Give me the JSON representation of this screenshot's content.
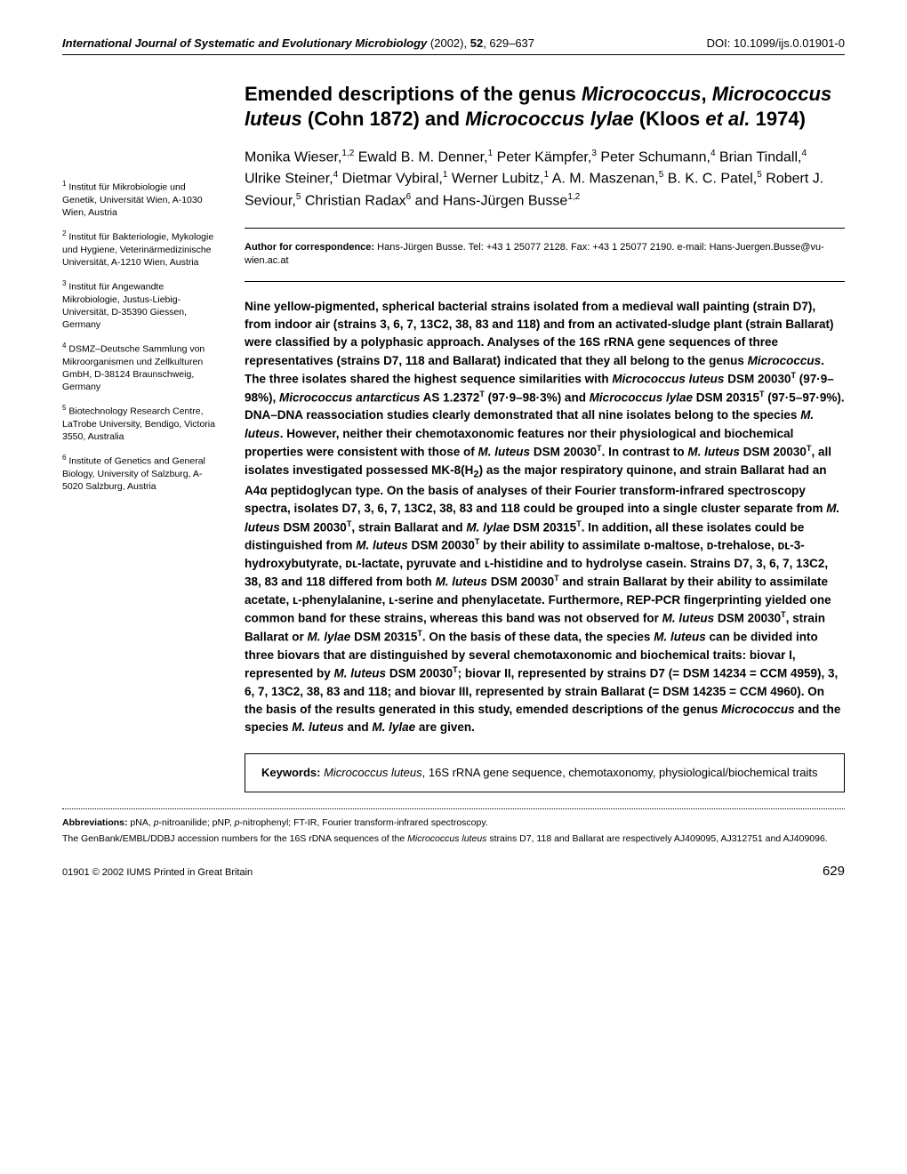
{
  "header": {
    "journal_italic": "International Journal of Systematic and Evolutionary Microbiology",
    "journal_meta": " (2002), ",
    "volume": "52",
    "pages": ", 629–637",
    "doi": "DOI: 10.1099/ijs.0.01901-0"
  },
  "title_html": "Emended descriptions of the genus <em>Micrococcus</em>, <em>Micrococcus luteus</em> (Cohn 1872) and <em>Micrococcus lylae</em> (Kloos <em>et al.</em> 1974)",
  "authors_html": "Monika Wieser,<sup>1,2</sup> Ewald B. M. Denner,<sup>1</sup> Peter Kämpfer,<sup>3</sup> Peter Schumann,<sup>4</sup> Brian Tindall,<sup>4</sup> Ulrike Steiner,<sup>4</sup> Dietmar Vybiral,<sup>1</sup> Werner Lubitz,<sup>1</sup> A. M. Maszenan,<sup>5</sup> B. K. C. Patel,<sup>5</sup> Robert J. Seviour,<sup>5</sup> Christian Radax<sup>6</sup> and Hans-Jürgen Busse<sup>1,2</sup>",
  "affiliations": [
    {
      "num": "1",
      "text": "Institut für Mikrobiologie und Genetik, Universität Wien, A-1030 Wien, Austria"
    },
    {
      "num": "2",
      "text": "Institut für Bakteriologie, Mykologie und Hygiene, Veterinärmedizinische Universität, A-1210 Wien, Austria"
    },
    {
      "num": "3",
      "text": "Institut für Angewandte Mikrobiologie, Justus-Liebig-Universität, D-35390 Giessen, Germany"
    },
    {
      "num": "4",
      "text": "DSMZ–Deutsche Sammlung von Mikroorganismen und Zellkulturen GmbH, D-38124 Braunschweig, Germany"
    },
    {
      "num": "5",
      "text": "Biotechnology Research Centre, LaTrobe University, Bendigo, Victoria 3550, Australia"
    },
    {
      "num": "6",
      "text": "Institute of Genetics and General Biology, University of Salzburg, A-5020 Salzburg, Austria"
    }
  ],
  "correspondence_html": "<b>Author for correspondence:</b> Hans-Jürgen Busse. Tel: +43 1 25077 2128. Fax: +43 1 25077 2190. e-mail: Hans-Juergen.Busse@vu-wien.ac.at",
  "abstract_html": "Nine yellow-pigmented, spherical bacterial strains isolated from a medieval wall painting (strain D7), from indoor air (strains 3, 6, 7, 13C2, 38, 83 and 118) and from an activated-sludge plant (strain Ballarat) were classified by a polyphasic approach. Analyses of the 16S rRNA gene sequences of three representatives (strains D7, 118 and Ballarat) indicated that they all belong to the genus <em>Micrococcus</em>. The three isolates shared the highest sequence similarities with <em>Micrococcus luteus</em> DSM 20030<sup>T</sup> (97·9–98%), <em>Micrococcus antarcticus</em> AS 1.2372<sup>T</sup> (97·9–98·3%) and <em>Micrococcus lylae</em> DSM 20315<sup>T</sup> (97·5–97·9%). DNA–DNA reassociation studies clearly demonstrated that all nine isolates belong to the species <em>M. luteus</em>. However, neither their chemotaxonomic features nor their physiological and biochemical properties were consistent with those of <em>M. luteus</em> DSM 20030<sup>T</sup>. In contrast to <em>M. luteus</em> DSM 20030<sup>T</sup>, all isolates investigated possessed MK-8(H<sub>2</sub>) as the major respiratory quinone, and strain Ballarat had an A4α peptidoglycan type. On the basis of analyses of their Fourier transform-infrared spectroscopy spectra, isolates D7, 3, 6, 7, 13C2, 38, 83 and 118 could be grouped into a single cluster separate from <em>M. luteus</em> DSM 20030<sup>T</sup>, strain Ballarat and <em>M. lylae</em> DSM 20315<sup>T</sup>. In addition, all these isolates could be distinguished from <em>M. luteus</em> DSM 20030<sup>T</sup> by their ability to assimilate ᴅ-maltose, ᴅ-trehalose, ᴅʟ-3-hydroxybutyrate, ᴅʟ-lactate, pyruvate and ʟ-histidine and to hydrolyse casein. Strains D7, 3, 6, 7, 13C2, 38, 83 and 118 differed from both <em>M. luteus</em> DSM 20030<sup>T</sup> and strain Ballarat by their ability to assimilate acetate, ʟ-phenylalanine, ʟ-serine and phenylacetate. Furthermore, REP-PCR fingerprinting yielded one common band for these strains, whereas this band was not observed for <em>M. luteus</em> DSM 20030<sup>T</sup>, strain Ballarat or <em>M. lylae</em> DSM 20315<sup>T</sup>. On the basis of these data, the species <em>M. luteus</em> can be divided into three biovars that are distinguished by several chemotaxonomic and biochemical traits: biovar I, represented by <em>M. luteus</em> DSM 20030<sup>T</sup>; biovar II, represented by strains D7 (= DSM 14234 = CCM 4959), 3, 6, 7, 13C2, 38, 83 and 118; and biovar III, represented by strain Ballarat (= DSM 14235 = CCM 4960). On the basis of the results generated in this study, emended descriptions of the genus <em>Micrococcus</em> and the species <em>M. luteus</em> and <em>M. lylae</em> are given.",
  "keywords_html": "<b>Keywords:</b> <em>Micrococcus luteus</em>, 16S rRNA gene sequence, chemotaxonomy, physiological/biochemical traits",
  "footnotes": {
    "abbrev_html": "<b>Abbreviations:</b> pNA, <em>p</em>-nitroanilide; pNP, <em>p</em>-nitrophenyl; FT-IR, Fourier transform-infrared spectroscopy.",
    "accession_html": "The GenBank/EMBL/DDBJ accession numbers for the 16S rDNA sequences of the <em>Micrococcus luteus</em> strains D7, 118 and Ballarat are respectively AJ409095, AJ312751 and AJ409096."
  },
  "footer": {
    "copyright": "01901 © 2002 IUMS   Printed in Great Britain",
    "page": "629"
  }
}
